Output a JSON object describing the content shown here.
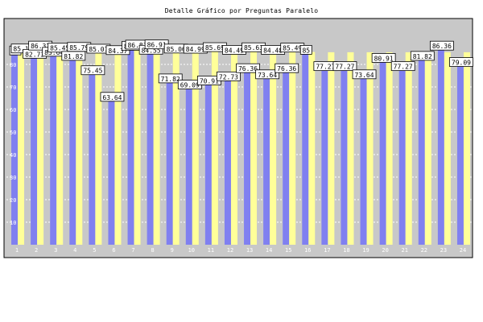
{
  "chart_data": {
    "type": "bar",
    "title": "Detalle Gráfico por Preguntas Paralelo",
    "xlabel": "",
    "ylabel": "",
    "ylim": [
      0,
      100
    ],
    "y_ticks": [
      "10",
      "20",
      "30",
      "40",
      "50",
      "60",
      "70",
      "80"
    ],
    "grid": true,
    "categories": [
      "1",
      "2",
      "3",
      "4",
      "5",
      "6",
      "7",
      "8",
      "9",
      "10",
      "11",
      "12",
      "13",
      "14",
      "15",
      "16",
      "17",
      "18",
      "19",
      "20",
      "21",
      "22",
      "23",
      "24"
    ],
    "series": [
      {
        "values": [
          84.2,
          82.73,
          83.64,
          81.82,
          75.45,
          63.64,
          86.3,
          84.55,
          71.82,
          69.09,
          70.91,
          72.73,
          76.36,
          73.64,
          76.36,
          84.5,
          77.27,
          77.27,
          73.64,
          80.91,
          77.27,
          81.82,
          86.36,
          79.09
        ],
        "color": "#8080f0"
      },
      {
        "values": [
          85.1,
          86.37,
          85.45,
          85.79,
          85.01,
          84.37,
          86.81,
          86.91,
          85.06,
          84.99,
          85.69,
          84.49,
          85.63,
          84.48,
          85.49,
          85.5,
          85.4,
          85.4,
          85.4,
          85.4,
          85.4,
          85.4,
          85.4,
          85.4
        ],
        "color": "#ffff99"
      }
    ],
    "data_labels": [
      {
        "series": 0,
        "index": 0,
        "text": "84"
      },
      {
        "series": 1,
        "index": 0,
        "text": "85.1"
      },
      {
        "series": 0,
        "index": 1,
        "text": "82.73"
      },
      {
        "series": 1,
        "index": 1,
        "text": "86.37"
      },
      {
        "series": 0,
        "index": 2,
        "text": "83.64"
      },
      {
        "series": 1,
        "index": 2,
        "text": "85.45"
      },
      {
        "series": 0,
        "index": 3,
        "text": "81.82"
      },
      {
        "series": 1,
        "index": 3,
        "text": "85.79"
      },
      {
        "series": 0,
        "index": 4,
        "text": "75.45"
      },
      {
        "series": 1,
        "index": 4,
        "text": "85.01"
      },
      {
        "series": 0,
        "index": 5,
        "text": "63.64"
      },
      {
        "series": 1,
        "index": 5,
        "text": "84.37"
      },
      {
        "series": 0,
        "index": 6,
        "text": "86.3"
      },
      {
        "series": 1,
        "index": 6,
        "text": "86.81"
      },
      {
        "series": 0,
        "index": 7,
        "text": "84.55"
      },
      {
        "series": 1,
        "index": 7,
        "text": "86.91"
      },
      {
        "series": 0,
        "index": 8,
        "text": "71.82"
      },
      {
        "series": 1,
        "index": 8,
        "text": "85.06"
      },
      {
        "series": 0,
        "index": 9,
        "text": "69.09"
      },
      {
        "series": 1,
        "index": 9,
        "text": "84.99"
      },
      {
        "series": 0,
        "index": 10,
        "text": "70.91"
      },
      {
        "series": 1,
        "index": 10,
        "text": "85.69"
      },
      {
        "series": 0,
        "index": 11,
        "text": "72.73"
      },
      {
        "series": 1,
        "index": 11,
        "text": "84.49"
      },
      {
        "series": 0,
        "index": 12,
        "text": "76.36"
      },
      {
        "series": 1,
        "index": 12,
        "text": "85.63"
      },
      {
        "series": 0,
        "index": 13,
        "text": "73.64"
      },
      {
        "series": 1,
        "index": 13,
        "text": "84.48"
      },
      {
        "series": 0,
        "index": 14,
        "text": "76.36"
      },
      {
        "series": 1,
        "index": 14,
        "text": "85.49"
      },
      {
        "series": 0,
        "index": 15,
        "text": "85"
      },
      {
        "series": 0,
        "index": 16,
        "text": "77.27"
      },
      {
        "series": 0,
        "index": 17,
        "text": "77.27"
      },
      {
        "series": 0,
        "index": 18,
        "text": "73.64"
      },
      {
        "series": 0,
        "index": 19,
        "text": "80.91"
      },
      {
        "series": 0,
        "index": 20,
        "text": "77.27"
      },
      {
        "series": 0,
        "index": 21,
        "text": "81.82"
      },
      {
        "series": 0,
        "index": 22,
        "text": "86.36"
      },
      {
        "series": 0,
        "index": 23,
        "text": "79.09"
      }
    ]
  }
}
